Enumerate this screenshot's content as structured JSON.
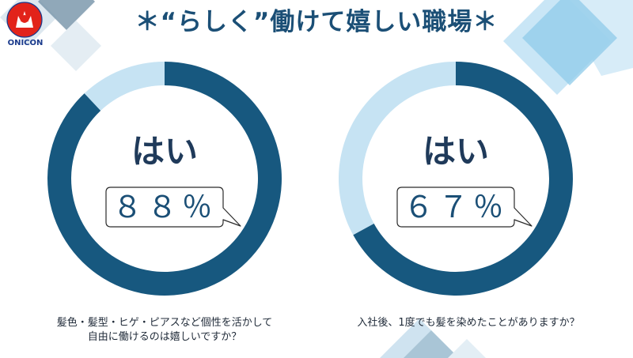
{
  "logo": {
    "text": "ONICON"
  },
  "title": "＊“らしく”働けて嬉しい職場＊",
  "colors": {
    "primary": "#17587f",
    "secondary": "#c6e3f3",
    "title_text": "#1b4f76",
    "answer_text": "#1f3a5a",
    "logo_red": "#e2231a",
    "logo_blue": "#1a3a8c"
  },
  "chart_data": [
    {
      "type": "pie",
      "style": "donut",
      "categories": [
        "はい",
        ""
      ],
      "values": [
        88,
        12
      ],
      "colors": [
        "#17587f",
        "#c6e3f3"
      ],
      "answer": "はい",
      "value_label": "８８％",
      "question": [
        "髪色・髪型・ヒゲ・ピアスなど個性を活かして",
        "自由に働けるのは嬉しいですか？"
      ]
    },
    {
      "type": "pie",
      "style": "donut",
      "categories": [
        "はい",
        ""
      ],
      "values": [
        67,
        33
      ],
      "colors": [
        "#17587f",
        "#c6e3f3"
      ],
      "answer": "はい",
      "value_label": "６７％",
      "question": [
        "入社後、1度でも髪を染めたことがありますか？"
      ]
    }
  ]
}
